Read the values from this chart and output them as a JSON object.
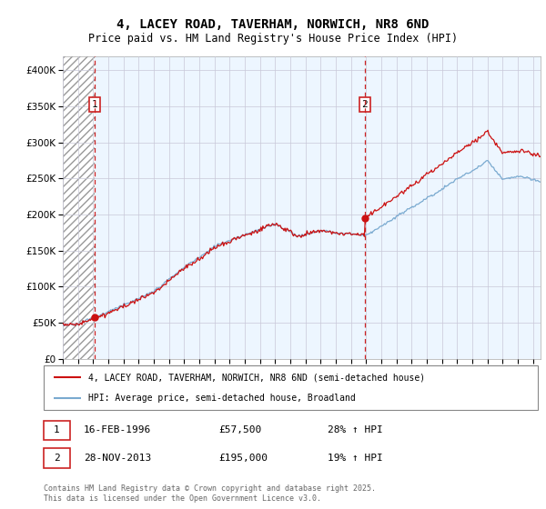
{
  "title": "4, LACEY ROAD, TAVERHAM, NORWICH, NR8 6ND",
  "subtitle": "Price paid vs. HM Land Registry's House Price Index (HPI)",
  "sale1_date": "16-FEB-1996",
  "sale1_price": 57500,
  "sale1_hpi": "28% ↑ HPI",
  "sale1_year": 1996.12,
  "sale2_date": "28-NOV-2013",
  "sale2_price": 195000,
  "sale2_hpi": "19% ↑ HPI",
  "sale2_year": 2013.91,
  "legend1": "4, LACEY ROAD, TAVERHAM, NORWICH, NR8 6ND (semi-detached house)",
  "legend2": "HPI: Average price, semi-detached house, Broadland",
  "footer": "Contains HM Land Registry data © Crown copyright and database right 2025.\nThis data is licensed under the Open Government Licence v3.0.",
  "price_color": "#cc1111",
  "hpi_color": "#7aaad0",
  "vline_color": "#cc2222",
  "grid_color": "#cccccc",
  "xmin": 1994,
  "xmax": 2025.5,
  "ymin": 0,
  "ymax": 420000
}
